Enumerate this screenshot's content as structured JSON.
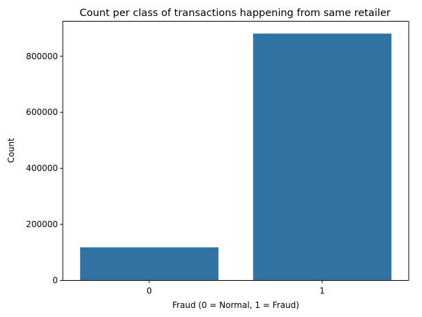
{
  "chart_data": {
    "type": "bar",
    "title": "Count per class of transactions happening from same retailer",
    "xlabel": "Fraud (0 = Normal, 1 = Fraud)",
    "ylabel": "Count",
    "categories": [
      "0",
      "1"
    ],
    "values": [
      118000,
      881000
    ],
    "ylim": [
      0,
      925000
    ],
    "yticks": [
      0,
      200000,
      400000,
      600000,
      800000
    ],
    "ytick_labels": [
      "0",
      "200000",
      "400000",
      "600000",
      "800000"
    ],
    "grid": false,
    "legend": "none",
    "bar_color": "#3274a1"
  }
}
